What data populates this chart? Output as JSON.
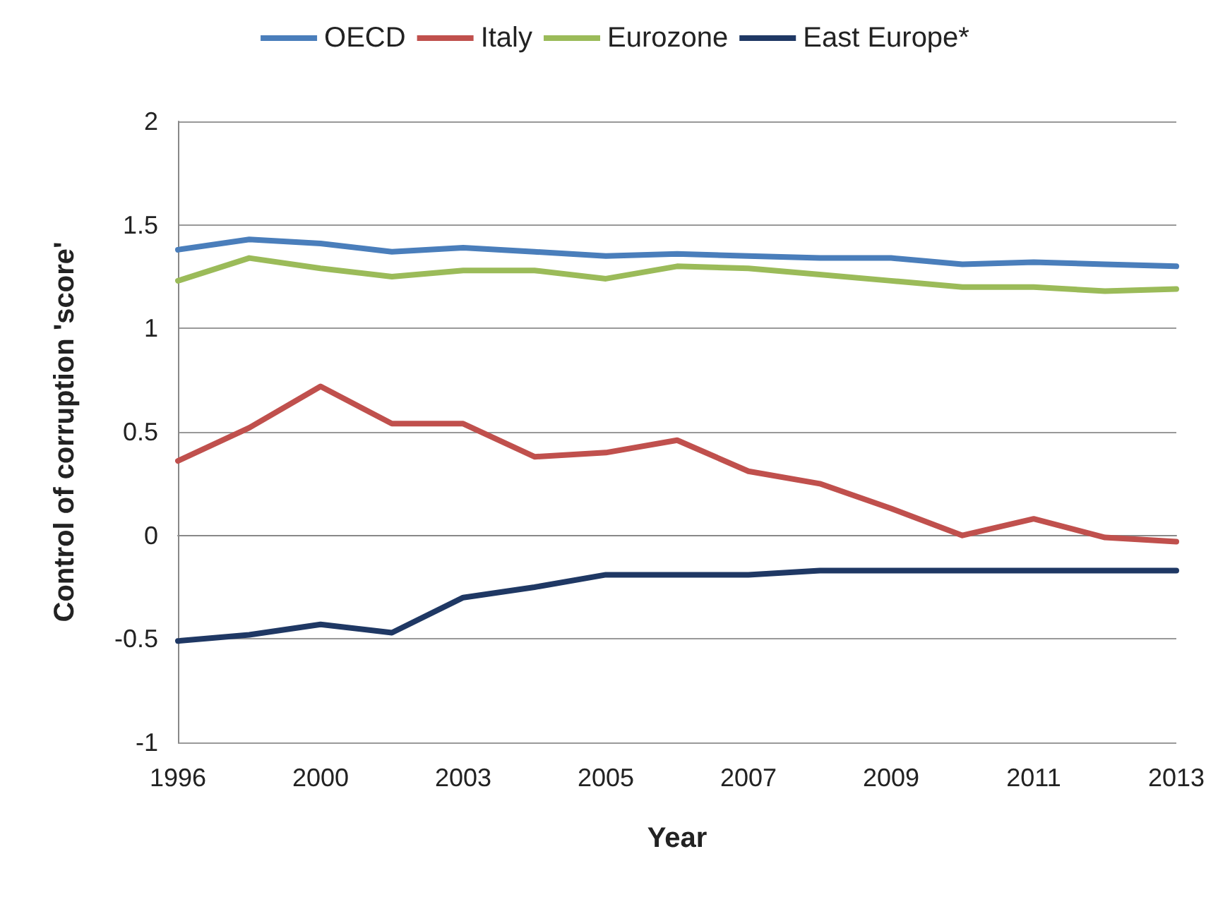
{
  "chart_data": {
    "type": "line",
    "xlabel": "Year",
    "ylabel": "Control of corruption 'score'",
    "categories": [
      "1996",
      null,
      "2000",
      null,
      "2003",
      null,
      "2005",
      null,
      "2007",
      null,
      "2009",
      null,
      "2011",
      null,
      "2013"
    ],
    "series": [
      {
        "name": "OECD",
        "color": "#4a7ebb",
        "values": [
          1.38,
          1.43,
          1.41,
          1.37,
          1.39,
          1.37,
          1.35,
          1.36,
          1.35,
          1.34,
          1.34,
          1.31,
          1.32,
          1.31,
          1.3
        ]
      },
      {
        "name": "Italy",
        "color": "#c0504d",
        "values": [
          0.36,
          0.52,
          0.72,
          0.54,
          0.54,
          0.38,
          0.4,
          0.46,
          0.31,
          0.25,
          0.13,
          0.0,
          0.08,
          -0.01,
          -0.03
        ]
      },
      {
        "name": "Eurozone",
        "color": "#9bbb59",
        "values": [
          1.23,
          1.34,
          1.29,
          1.25,
          1.28,
          1.28,
          1.24,
          1.3,
          1.29,
          1.26,
          1.23,
          1.2,
          1.2,
          1.18,
          1.19
        ]
      },
      {
        "name": "East Europe*",
        "color": "#1f3864",
        "values": [
          -0.51,
          -0.48,
          -0.43,
          -0.47,
          -0.3,
          -0.25,
          -0.19,
          -0.19,
          -0.19,
          -0.17,
          -0.17,
          -0.17,
          -0.17,
          -0.17,
          -0.17
        ]
      }
    ],
    "ylim": [
      -1,
      2
    ],
    "yticks": [
      -1,
      -0.5,
      0,
      0.5,
      1,
      1.5,
      2
    ],
    "grid": "y",
    "legend": "top",
    "marker": "none",
    "line_style": "solid"
  }
}
